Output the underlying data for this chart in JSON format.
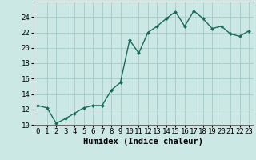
{
  "xlabel": "Humidex (Indice chaleur)",
  "x": [
    0,
    1,
    2,
    3,
    4,
    5,
    6,
    7,
    8,
    9,
    10,
    11,
    12,
    13,
    14,
    15,
    16,
    17,
    18,
    19,
    20,
    21,
    22,
    23
  ],
  "y": [
    12.5,
    12.2,
    10.2,
    10.8,
    11.5,
    12.2,
    12.5,
    12.5,
    14.5,
    15.5,
    21.0,
    19.3,
    22.0,
    22.8,
    23.8,
    24.7,
    22.8,
    24.8,
    23.8,
    22.5,
    22.8,
    21.8,
    21.5,
    22.2
  ],
  "line_color": "#1a6b5a",
  "marker": "D",
  "marker_size": 2,
  "bg_color": "#cce8e4",
  "grid_color": "#aacfcc",
  "ylim": [
    10,
    26
  ],
  "xlim": [
    -0.5,
    23.5
  ],
  "yticks": [
    10,
    12,
    14,
    16,
    18,
    20,
    22,
    24
  ],
  "xticks": [
    0,
    1,
    2,
    3,
    4,
    5,
    6,
    7,
    8,
    9,
    10,
    11,
    12,
    13,
    14,
    15,
    16,
    17,
    18,
    19,
    20,
    21,
    22,
    23
  ],
  "tick_fontsize": 6.5,
  "xlabel_fontsize": 7.5,
  "linewidth": 1.0
}
